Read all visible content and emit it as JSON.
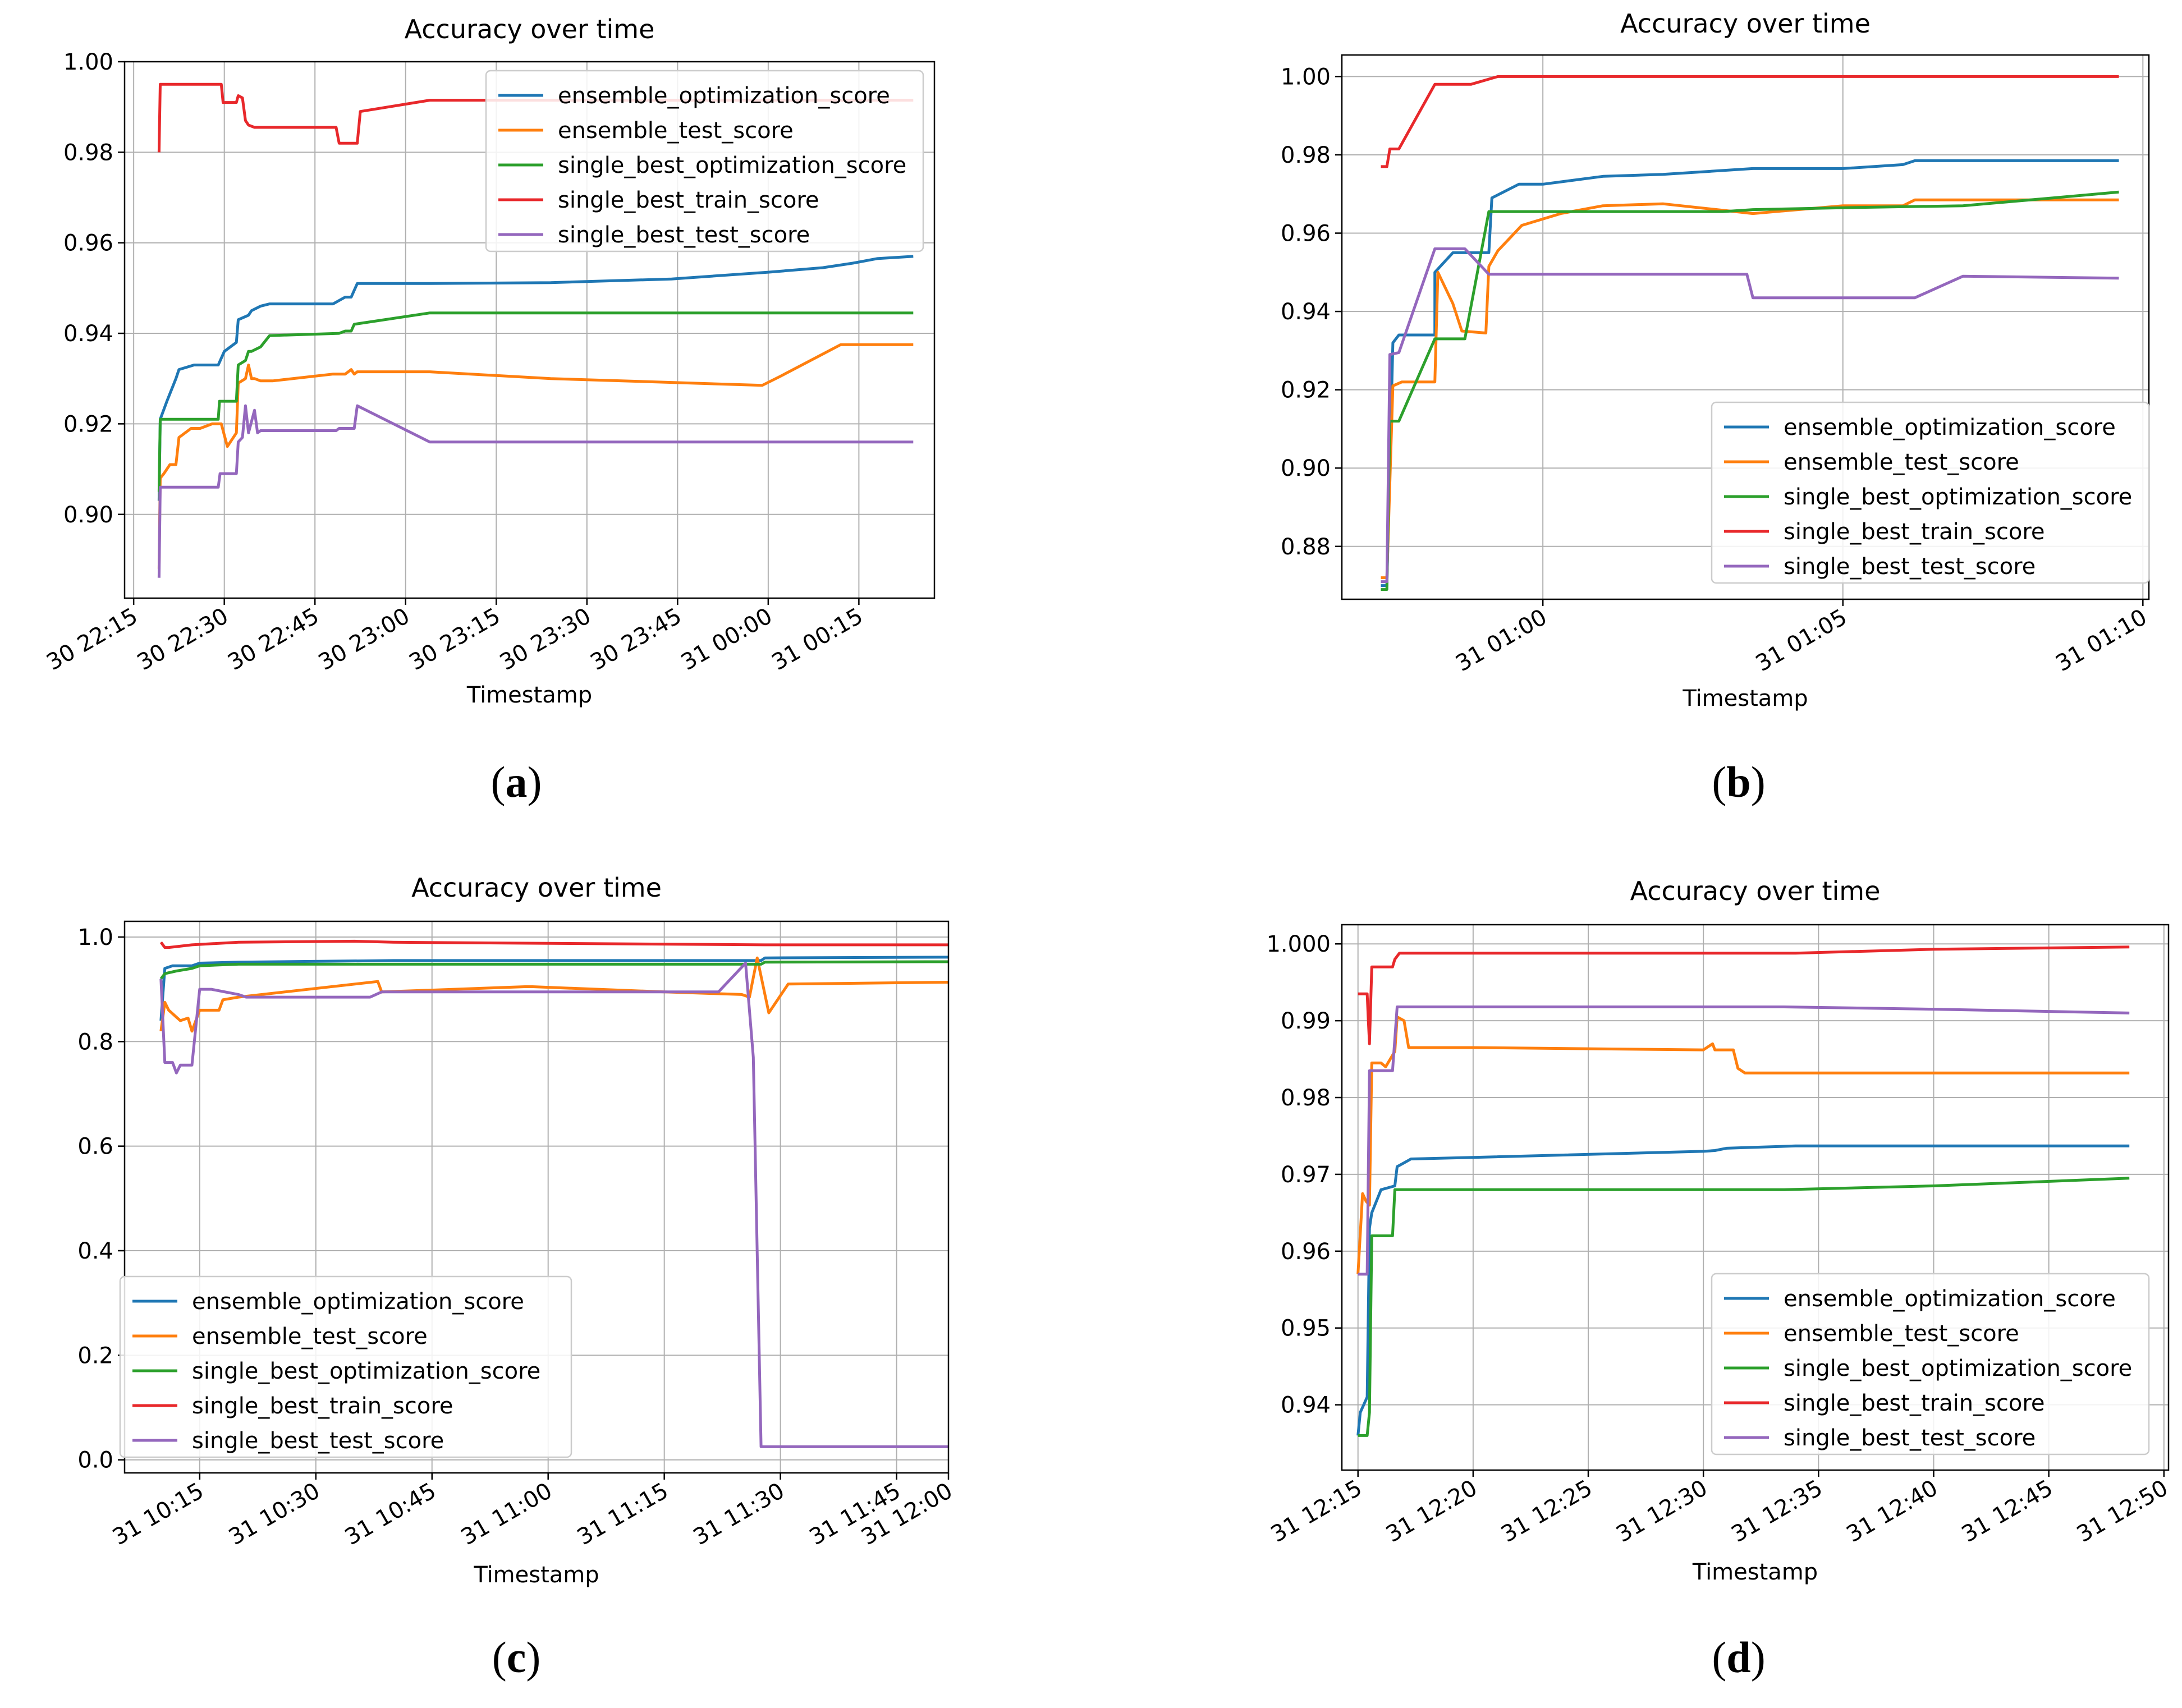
{
  "chart_data": [
    {
      "panel": "a",
      "caption": "a",
      "type": "line",
      "title": "Accuracy over time",
      "xlabel": "Timestamp",
      "ylabel": "",
      "legend_position": "top-right",
      "grid": true,
      "xlim": [
        -10.5,
        123.5
      ],
      "ylim": [
        0.8815,
        1.0
      ],
      "yticks": [
        0.9,
        0.92,
        0.94,
        0.96,
        0.98,
        1.0
      ],
      "ytick_labels": [
        "0.90",
        "0.92",
        "0.94",
        "0.96",
        "0.98",
        "1.00"
      ],
      "xticks": [
        -9,
        6,
        21,
        36,
        51,
        66,
        81,
        96,
        111
      ],
      "xtick_labels": [
        "30 22:15",
        "30 22:30",
        "30 22:45",
        "30 23:00",
        "30 23:15",
        "30 23:30",
        "30 23:45",
        "31 00:00",
        "31 00:15"
      ],
      "series": [
        {
          "name": "ensemble_optimization_score",
          "color": "#1f77b4",
          "x": [
            -4.8,
            -4.6,
            -3.5,
            -2.0,
            -1.5,
            1.0,
            5.0,
            6.0,
            8.0,
            8.3,
            10.0,
            10.5,
            12.0,
            13.5,
            20.0,
            24.0,
            26.0,
            27.0,
            28.0,
            40.0,
            60.0,
            80.0,
            96.0,
            105.0,
            110.0,
            114.0,
            120.0
          ],
          "y": [
            0.903,
            0.921,
            0.925,
            0.93,
            0.932,
            0.933,
            0.933,
            0.936,
            0.938,
            0.943,
            0.944,
            0.945,
            0.946,
            0.9465,
            0.9465,
            0.9465,
            0.948,
            0.948,
            0.951,
            0.951,
            0.9512,
            0.952,
            0.9535,
            0.9545,
            0.9555,
            0.9565,
            0.957
          ]
        },
        {
          "name": "ensemble_test_score",
          "color": "#ff7f0e",
          "x": [
            -4.8,
            -4.6,
            -4.0,
            -3.0,
            -2.0,
            -1.5,
            0.5,
            2.0,
            4.0,
            5.5,
            6.5,
            8.0,
            8.3,
            9.5,
            10.0,
            10.5,
            11.0,
            12.0,
            14.0,
            24.0,
            26.0,
            27.0,
            27.5,
            28.0,
            40.0,
            60.0,
            95.0,
            98.0,
            108.0,
            120.0
          ],
          "y": [
            0.888,
            0.908,
            0.909,
            0.911,
            0.911,
            0.917,
            0.919,
            0.919,
            0.92,
            0.92,
            0.915,
            0.918,
            0.929,
            0.93,
            0.933,
            0.93,
            0.93,
            0.9295,
            0.9295,
            0.931,
            0.931,
            0.932,
            0.931,
            0.9315,
            0.9315,
            0.93,
            0.9285,
            0.9305,
            0.9375,
            0.9375
          ]
        },
        {
          "name": "single_best_optimization_score",
          "color": "#2ca02c",
          "x": [
            -4.8,
            -4.6,
            5.0,
            5.2,
            8.0,
            8.3,
            9.5,
            10.0,
            10.5,
            12.0,
            13.5,
            25.0,
            26.0,
            27.0,
            27.5,
            40.0,
            120.0
          ],
          "y": [
            0.905,
            0.921,
            0.921,
            0.925,
            0.925,
            0.933,
            0.934,
            0.936,
            0.936,
            0.937,
            0.9395,
            0.94,
            0.9405,
            0.9405,
            0.942,
            0.9445,
            0.9445
          ]
        },
        {
          "name": "single_best_train_score",
          "color": "#e8282b",
          "x": [
            -4.8,
            -4.6,
            5.5,
            5.8,
            8.0,
            8.3,
            9.0,
            9.5,
            10.0,
            11.0,
            12.0,
            24.5,
            25.0,
            28.0,
            28.5,
            40.0,
            120.0
          ],
          "y": [
            0.98,
            0.995,
            0.995,
            0.991,
            0.991,
            0.9925,
            0.992,
            0.987,
            0.986,
            0.9855,
            0.9855,
            0.9855,
            0.982,
            0.982,
            0.989,
            0.9915,
            0.9915
          ]
        },
        {
          "name": "single_best_test_score",
          "color": "#9467bd",
          "x": [
            -4.8,
            -4.6,
            5.0,
            5.3,
            8.0,
            8.3,
            9.0,
            9.5,
            10.0,
            11.0,
            11.5,
            12.0,
            24.5,
            25.0,
            27.5,
            28.0,
            40.0,
            120.0
          ],
          "y": [
            0.886,
            0.906,
            0.906,
            0.909,
            0.909,
            0.916,
            0.917,
            0.924,
            0.918,
            0.923,
            0.918,
            0.9185,
            0.9185,
            0.919,
            0.919,
            0.924,
            0.916,
            0.916
          ]
        }
      ]
    },
    {
      "panel": "b",
      "caption": "b",
      "type": "line",
      "title": "Accuracy over time",
      "xlabel": "Timestamp",
      "ylabel": "",
      "legend_position": "lower-right",
      "grid": true,
      "xlim": [
        -3.35,
        10.1
      ],
      "ylim": [
        0.8665,
        1.0055
      ],
      "yticks": [
        0.88,
        0.9,
        0.92,
        0.94,
        0.96,
        0.98,
        1.0
      ],
      "ytick_labels": [
        "0.88",
        "0.90",
        "0.92",
        "0.94",
        "0.96",
        "0.98",
        "1.00"
      ],
      "xticks": [
        0,
        5,
        10
      ],
      "xtick_labels": [
        "31 01:00",
        "31 01:05",
        "31 01:10"
      ],
      "series": [
        {
          "name": "ensemble_optimization_score",
          "color": "#1f77b4",
          "x": [
            -2.7,
            -2.6,
            -2.5,
            -2.4,
            -1.8,
            -1.8,
            -1.5,
            -1.2,
            -0.9,
            -0.85,
            -0.4,
            0.0,
            1.0,
            2.0,
            3.5,
            5.0,
            6.0,
            6.2,
            9.6
          ],
          "y": [
            0.87,
            0.87,
            0.932,
            0.934,
            0.934,
            0.95,
            0.955,
            0.955,
            0.955,
            0.969,
            0.9725,
            0.9725,
            0.9745,
            0.975,
            0.9765,
            0.9765,
            0.9775,
            0.9785,
            0.9785
          ]
        },
        {
          "name": "ensemble_test_score",
          "color": "#ff7f0e",
          "x": [
            -2.7,
            -2.6,
            -2.5,
            -2.35,
            -1.8,
            -1.75,
            -1.5,
            -1.35,
            -0.95,
            -0.9,
            -0.75,
            -0.35,
            0.3,
            1.0,
            2.0,
            3.5,
            5.0,
            6.0,
            6.2,
            9.6
          ],
          "y": [
            0.872,
            0.872,
            0.921,
            0.922,
            0.922,
            0.95,
            0.942,
            0.935,
            0.9345,
            0.9515,
            0.9555,
            0.962,
            0.965,
            0.967,
            0.9675,
            0.965,
            0.967,
            0.967,
            0.9685,
            0.9685
          ]
        },
        {
          "name": "single_best_optimization_score",
          "color": "#2ca02c",
          "x": [
            -2.7,
            -2.6,
            -2.55,
            -2.4,
            -1.8,
            -1.6,
            -1.3,
            -0.9,
            -0.9,
            3.0,
            3.5,
            5.0,
            7.0,
            8.5,
            9.6
          ],
          "y": [
            0.869,
            0.869,
            0.912,
            0.912,
            0.933,
            0.933,
            0.933,
            0.9655,
            0.9655,
            0.9655,
            0.966,
            0.9665,
            0.967,
            0.969,
            0.9705
          ]
        },
        {
          "name": "single_best_train_score",
          "color": "#e8282b",
          "x": [
            -2.7,
            -2.6,
            -2.55,
            -2.4,
            -1.8,
            -1.75,
            -1.2,
            -0.75,
            0.0,
            9.6
          ],
          "y": [
            0.977,
            0.977,
            0.9815,
            0.9815,
            0.998,
            0.998,
            0.998,
            1.0,
            1.0,
            1.0
          ]
        },
        {
          "name": "single_best_test_score",
          "color": "#9467bd",
          "x": [
            -2.7,
            -2.6,
            -2.55,
            -2.4,
            -1.8,
            -1.3,
            -0.9,
            -0.85,
            0.0,
            3.4,
            3.5,
            6.2,
            7.0,
            9.6
          ],
          "y": [
            0.871,
            0.871,
            0.929,
            0.9295,
            0.956,
            0.956,
            0.9495,
            0.9495,
            0.9495,
            0.9495,
            0.9435,
            0.9435,
            0.949,
            0.9485
          ]
        }
      ]
    },
    {
      "panel": "c",
      "caption": "c",
      "type": "line",
      "title": "Accuracy over time",
      "xlabel": "Timestamp",
      "ylabel": "",
      "legend_position": "lower-left",
      "grid": true,
      "xlim": [
        5.3,
        111.7
      ],
      "ylim": [
        -0.025,
        1.03
      ],
      "yticks": [
        0.0,
        0.2,
        0.4,
        0.6,
        0.8,
        1.0
      ],
      "ytick_labels": [
        "0.0",
        "0.2",
        "0.4",
        "0.6",
        "0.8",
        "1.0"
      ],
      "xticks": [
        15,
        30,
        45,
        60,
        75,
        90,
        105
      ],
      "xtick_labels": [
        "31 10:15",
        "31 10:30",
        "31 10:45",
        "31 11:00",
        "31 11:15",
        "31 11:30",
        "31 11:45",
        "31 12:00"
      ],
      "xticks_extra": [
        120
      ],
      "series": [
        {
          "name": "ensemble_optimization_score",
          "color": "#1f77b4",
          "x": [
            10.0,
            10.5,
            11.5,
            14.0,
            15.0,
            20.0,
            40.0,
            87.5,
            88.0,
            119.5
          ],
          "y": [
            0.84,
            0.94,
            0.945,
            0.945,
            0.95,
            0.952,
            0.955,
            0.955,
            0.96,
            0.962
          ]
        },
        {
          "name": "ensemble_test_score",
          "color": "#ff7f0e",
          "x": [
            10.0,
            10.5,
            11.0,
            12.5,
            13.5,
            14.0,
            15.0,
            17.5,
            18.0,
            20.0,
            38.0,
            38.5,
            57.0,
            58.0,
            75.0,
            85.0,
            86.0,
            87.0,
            88.5,
            91.0,
            119.5
          ],
          "y": [
            0.82,
            0.875,
            0.86,
            0.84,
            0.845,
            0.82,
            0.86,
            0.86,
            0.88,
            0.885,
            0.915,
            0.895,
            0.905,
            0.905,
            0.895,
            0.89,
            0.885,
            0.96,
            0.855,
            0.91,
            0.915
          ]
        },
        {
          "name": "single_best_optimization_score",
          "color": "#2ca02c",
          "x": [
            10.0,
            10.5,
            12.0,
            14.0,
            15.0,
            20.0,
            40.0,
            87.5,
            88.0,
            119.5
          ],
          "y": [
            0.92,
            0.93,
            0.935,
            0.94,
            0.945,
            0.948,
            0.948,
            0.948,
            0.952,
            0.953
          ]
        },
        {
          "name": "single_best_train_score",
          "color": "#e8282b",
          "x": [
            10.0,
            10.5,
            11.0,
            14.0,
            20.0,
            35.0,
            40.0,
            88.0,
            119.5
          ],
          "y": [
            0.99,
            0.98,
            0.98,
            0.985,
            0.99,
            0.992,
            0.99,
            0.985,
            0.985
          ]
        },
        {
          "name": "single_best_test_score",
          "color": "#9467bd",
          "x": [
            10.0,
            10.5,
            11.5,
            12.0,
            12.5,
            14.0,
            15.0,
            16.5,
            20.0,
            21.0,
            25.0,
            37.0,
            38.5,
            58.0,
            75.0,
            82.0,
            85.5,
            86.5,
            87.5,
            88.5,
            119.5
          ],
          "y": [
            0.92,
            0.76,
            0.76,
            0.74,
            0.755,
            0.755,
            0.9,
            0.9,
            0.89,
            0.885,
            0.885,
            0.885,
            0.895,
            0.895,
            0.895,
            0.895,
            0.95,
            0.77,
            0.025,
            0.025,
            0.025
          ]
        }
      ]
    },
    {
      "panel": "d",
      "caption": "d",
      "type": "line",
      "title": "Accuracy over time",
      "xlabel": "Timestamp",
      "ylabel": "",
      "legend_position": "lower-right",
      "grid": true,
      "xlim": [
        -0.7,
        35.2
      ],
      "ylim": [
        0.9315,
        1.0025
      ],
      "yticks": [
        0.94,
        0.95,
        0.96,
        0.97,
        0.98,
        0.99,
        1.0
      ],
      "ytick_labels": [
        "0.94",
        "0.95",
        "0.96",
        "0.97",
        "0.98",
        "0.99",
        "1.000"
      ],
      "xticks": [
        0,
        5,
        10,
        15,
        20,
        25,
        30,
        35
      ],
      "xtick_labels": [
        "31 12:15",
        "31 12:20",
        "31 12:25",
        "31 12:30",
        "31 12:35",
        "31 12:40",
        "31 12:45",
        "31 12:50"
      ],
      "series": [
        {
          "name": "ensemble_optimization_score",
          "color": "#1f77b4",
          "x": [
            0.0,
            0.1,
            0.4,
            0.5,
            0.6,
            1.0,
            1.6,
            1.7,
            2.0,
            2.3,
            5.0,
            15.0,
            15.5,
            16.0,
            17.0,
            19.0,
            25.0,
            33.5
          ],
          "y": [
            0.936,
            0.939,
            0.941,
            0.963,
            0.965,
            0.968,
            0.9685,
            0.971,
            0.9715,
            0.972,
            0.9722,
            0.973,
            0.9731,
            0.9734,
            0.9735,
            0.9737,
            0.9737,
            0.9737
          ]
        },
        {
          "name": "ensemble_test_score",
          "color": "#ff7f0e",
          "x": [
            0.0,
            0.2,
            0.35,
            0.5,
            0.6,
            1.0,
            1.2,
            1.5,
            1.6,
            1.7,
            2.0,
            2.2,
            5.0,
            15.0,
            15.4,
            15.5,
            16.0,
            16.3,
            16.5,
            16.8,
            17.0,
            33.5
          ],
          "y": [
            0.957,
            0.9675,
            0.9665,
            0.966,
            0.9845,
            0.9845,
            0.984,
            0.9855,
            0.986,
            0.9905,
            0.99,
            0.9865,
            0.9865,
            0.9862,
            0.987,
            0.9862,
            0.9862,
            0.9862,
            0.9838,
            0.9832,
            0.9832,
            0.9832
          ]
        },
        {
          "name": "single_best_optimization_score",
          "color": "#2ca02c",
          "x": [
            0.0,
            0.4,
            0.5,
            0.6,
            1.0,
            1.5,
            1.6,
            2.0,
            5.0,
            18.5,
            25.0,
            33.5
          ],
          "y": [
            0.936,
            0.936,
            0.939,
            0.962,
            0.962,
            0.962,
            0.968,
            0.968,
            0.968,
            0.968,
            0.9685,
            0.9695
          ]
        },
        {
          "name": "single_best_train_score",
          "color": "#e8282b",
          "x": [
            0.0,
            0.4,
            0.45,
            0.5,
            0.6,
            1.5,
            1.6,
            1.8,
            2.0,
            19.0,
            25.0,
            33.5
          ],
          "y": [
            0.9935,
            0.9935,
            0.99,
            0.987,
            0.997,
            0.997,
            0.998,
            0.9988,
            0.9988,
            0.9988,
            0.9993,
            0.9996
          ]
        },
        {
          "name": "single_best_test_score",
          "color": "#9467bd",
          "x": [
            0.0,
            0.4,
            0.5,
            0.6,
            1.5,
            1.7,
            2.0,
            5.0,
            18.5,
            25.0,
            33.5
          ],
          "y": [
            0.957,
            0.957,
            0.9835,
            0.9835,
            0.9835,
            0.9918,
            0.9918,
            0.9918,
            0.9918,
            0.9915,
            0.991
          ]
        }
      ]
    }
  ]
}
